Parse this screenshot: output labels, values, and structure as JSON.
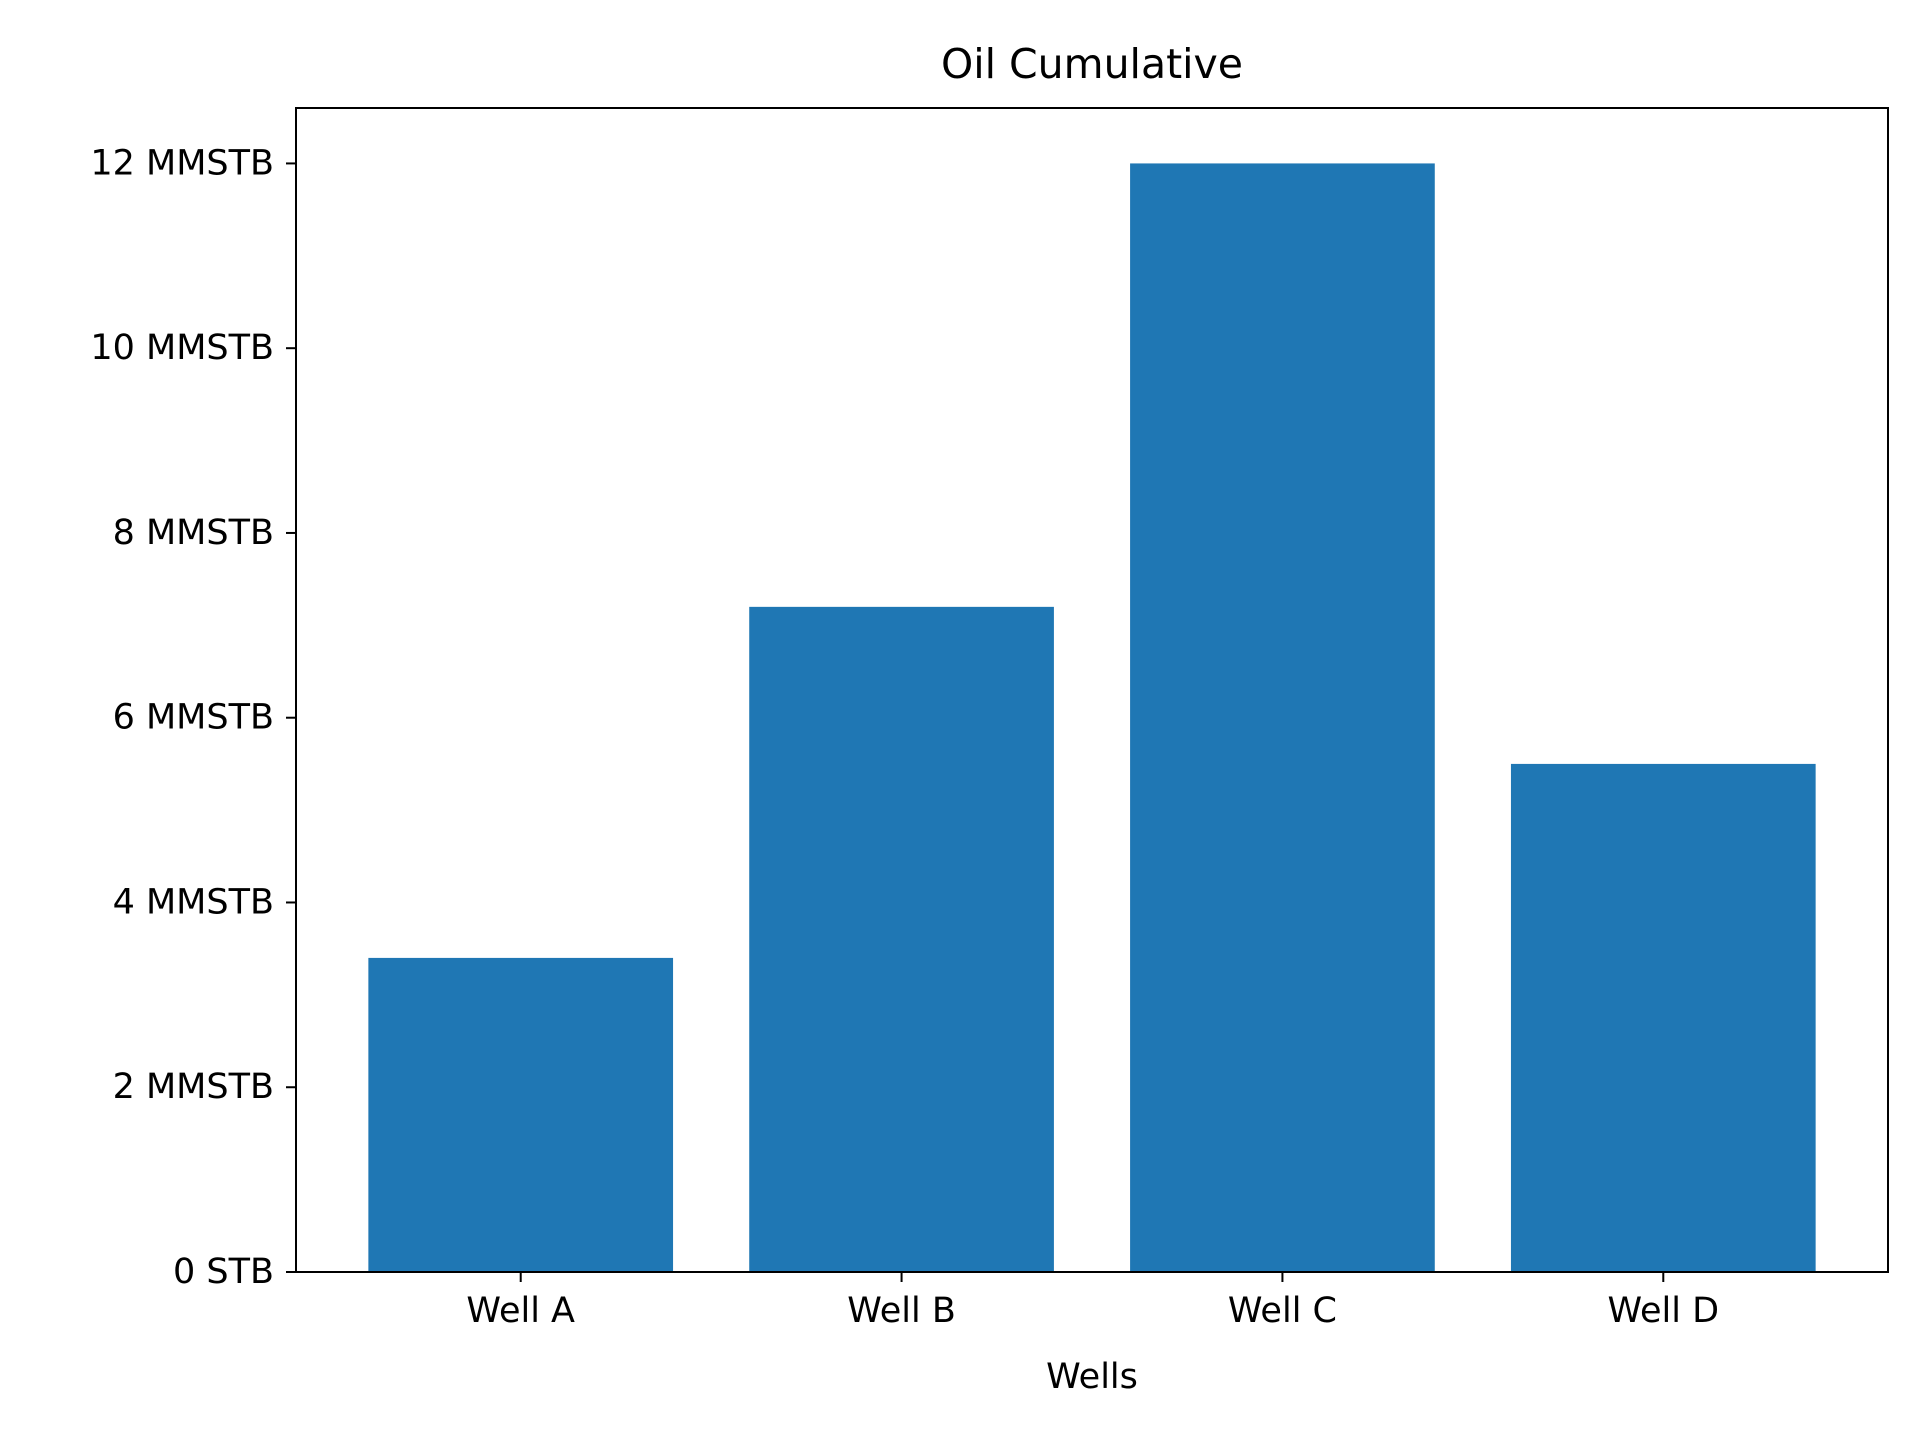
{
  "chart_data": {
    "type": "bar",
    "title": "Oil Cumulative",
    "xlabel": "Wells",
    "ylabel": "",
    "categories": [
      "Well A",
      "Well B",
      "Well C",
      "Well D"
    ],
    "values": [
      3400000,
      7200000,
      12000000,
      5500000
    ],
    "ylim": [
      0,
      12600000
    ],
    "yticks": [
      {
        "value": 0,
        "label": "0 STB"
      },
      {
        "value": 2000000,
        "label": "2 MMSTB"
      },
      {
        "value": 4000000,
        "label": "4 MMSTB"
      },
      {
        "value": 6000000,
        "label": "6 MMSTB"
      },
      {
        "value": 8000000,
        "label": "8 MMSTB"
      },
      {
        "value": 10000000,
        "label": "10 MMSTB"
      },
      {
        "value": 12000000,
        "label": "12 MMSTB"
      }
    ],
    "grid": false,
    "legend": "none",
    "bar_color": "#1f77b4"
  }
}
